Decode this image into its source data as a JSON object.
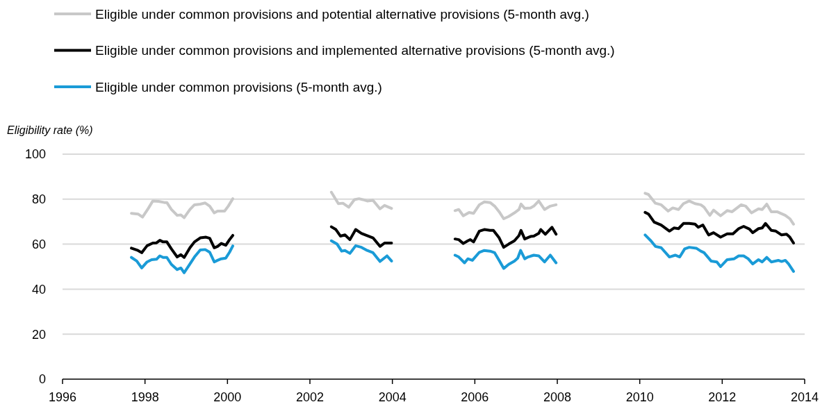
{
  "chart_data": {
    "type": "line",
    "ylabel": "Eligibility rate (%)",
    "xlim": [
      1996,
      2014
    ],
    "xticks": [
      1996,
      1998,
      2000,
      2002,
      2004,
      2006,
      2008,
      2010,
      2012,
      2014
    ],
    "ylim": [
      0,
      100
    ],
    "yticks": [
      0,
      20,
      40,
      60,
      80,
      100
    ],
    "grid": "y",
    "legend": "top",
    "marker": "none",
    "line_style": "solid",
    "series": [
      {
        "name": "Eligible under common provisions and potential alternative provisions (5-month avg.)",
        "color": "#c8c8c8",
        "x": [
          1997.67,
          1997.83,
          1997.94,
          1998.08,
          1998.19,
          1998.33,
          1998.47,
          1998.53,
          1998.64,
          1998.78,
          1998.87,
          1998.95,
          1999.09,
          1999.2,
          1999.34,
          1999.46,
          1999.57,
          1999.68,
          1999.76,
          1999.93,
          2000.02,
          2000.13,
          null,
          2002.52,
          2002.69,
          2002.8,
          2002.94,
          2003.08,
          2003.19,
          2003.28,
          2003.39,
          2003.53,
          2003.7,
          2003.81,
          2003.98,
          null,
          2005.52,
          2005.61,
          2005.72,
          2005.86,
          2005.97,
          2006.11,
          2006.23,
          2006.37,
          2006.48,
          2006.59,
          2006.7,
          2006.82,
          2006.96,
          2007.07,
          2007.12,
          2007.21,
          2007.35,
          2007.43,
          2007.55,
          2007.69,
          2007.83,
          2007.97,
          null,
          2010.13,
          2010.21,
          2010.38,
          2010.52,
          2010.69,
          2010.8,
          2010.94,
          2011.06,
          2011.2,
          2011.34,
          2011.48,
          2011.56,
          2011.7,
          2011.79,
          2011.96,
          2012.12,
          2012.24,
          2012.46,
          2012.57,
          2012.71,
          2012.88,
          2012.97,
          2013.08,
          2013.19,
          2013.33,
          2013.53,
          2013.64,
          2013.73
        ],
        "values": [
          73.7,
          73.4,
          72.0,
          75.9,
          79.2,
          79.0,
          78.5,
          78.5,
          75.4,
          72.8,
          73.0,
          71.8,
          75.4,
          77.5,
          77.8,
          78.3,
          76.9,
          73.9,
          74.7,
          74.7,
          76.9,
          80.2,
          null,
          83.1,
          78.0,
          78.2,
          76.4,
          79.8,
          80.2,
          79.8,
          79.2,
          79.5,
          75.7,
          77.2,
          75.9,
          null,
          74.9,
          75.4,
          72.6,
          74.1,
          73.7,
          77.5,
          78.8,
          78.5,
          76.9,
          74.4,
          71.3,
          72.3,
          73.9,
          75.4,
          77.8,
          75.9,
          76.1,
          76.9,
          79.2,
          75.4,
          76.9,
          77.5,
          null,
          82.6,
          82.1,
          78.2,
          77.5,
          74.7,
          76.1,
          75.4,
          78.0,
          79.2,
          78.0,
          77.5,
          76.4,
          72.8,
          75.1,
          72.6,
          74.9,
          74.4,
          77.5,
          76.9,
          73.9,
          75.7,
          75.4,
          77.8,
          74.4,
          74.4,
          72.8,
          71.3,
          68.9
        ]
      },
      {
        "name": "Eligible under common provisions and implemented alternative provisions (5-month avg.)",
        "color": "#000000",
        "x": [
          1997.67,
          1997.83,
          1997.92,
          1998.05,
          1998.19,
          1998.28,
          1998.36,
          1998.44,
          1998.53,
          1998.64,
          1998.78,
          1998.87,
          1998.95,
          1999.09,
          1999.2,
          1999.34,
          1999.48,
          1999.57,
          1999.68,
          1999.76,
          1999.85,
          1999.96,
          2000.05,
          2000.13,
          null,
          2002.52,
          2002.63,
          2002.74,
          2002.85,
          2002.97,
          2003.11,
          2003.25,
          2003.39,
          2003.53,
          2003.7,
          2003.81,
          2003.98,
          null,
          2005.52,
          2005.61,
          2005.72,
          2005.83,
          2005.89,
          2005.97,
          2006.11,
          2006.23,
          2006.37,
          2006.45,
          2006.59,
          2006.7,
          2006.82,
          2006.96,
          2007.07,
          2007.12,
          2007.21,
          2007.35,
          2007.43,
          2007.55,
          2007.6,
          2007.71,
          2007.87,
          2007.97,
          null,
          2010.13,
          2010.21,
          2010.35,
          2010.52,
          2010.72,
          2010.83,
          2010.94,
          2011.06,
          2011.2,
          2011.34,
          2011.42,
          2011.53,
          2011.67,
          2011.79,
          2011.96,
          2012.12,
          2012.26,
          2012.4,
          2012.52,
          2012.66,
          2012.74,
          2012.88,
          2012.97,
          2013.05,
          2013.19,
          2013.3,
          2013.44,
          2013.56,
          2013.64,
          2013.73
        ],
        "values": [
          58.2,
          57.2,
          56.2,
          59.3,
          60.5,
          60.6,
          61.7,
          61.0,
          61.0,
          57.9,
          54.3,
          55.3,
          54.1,
          58.4,
          61.0,
          62.8,
          63.1,
          62.6,
          58.4,
          59.0,
          60.3,
          59.5,
          62.0,
          63.9,
          null,
          67.7,
          66.5,
          63.6,
          64.1,
          62.0,
          66.5,
          64.8,
          63.8,
          62.8,
          59.0,
          60.5,
          60.5,
          null,
          62.3,
          62.0,
          60.3,
          61.5,
          62.0,
          61.0,
          65.8,
          66.5,
          66.1,
          66.1,
          62.8,
          58.6,
          60.0,
          61.5,
          63.8,
          66.1,
          62.3,
          63.4,
          63.6,
          64.8,
          66.5,
          64.4,
          67.5,
          64.4,
          null,
          74.1,
          73.4,
          69.8,
          68.5,
          65.8,
          67.2,
          66.9,
          69.2,
          69.2,
          68.9,
          67.5,
          68.5,
          64.1,
          65.1,
          63.1,
          64.6,
          64.6,
          66.9,
          67.9,
          66.7,
          65.1,
          66.9,
          67.2,
          69.2,
          66.1,
          65.8,
          64.1,
          64.4,
          63.1,
          60.5
        ]
      },
      {
        "name": "Eligible under common provisions (5-month avg.)",
        "color": "#1a9bd7",
        "x": [
          1997.67,
          1997.8,
          1997.92,
          1998.05,
          1998.16,
          1998.28,
          1998.36,
          1998.44,
          1998.53,
          1998.64,
          1998.78,
          1998.87,
          1998.95,
          1999.09,
          1999.2,
          1999.34,
          1999.46,
          1999.57,
          1999.68,
          1999.76,
          1999.85,
          1999.96,
          2000.05,
          2000.13,
          null,
          2002.52,
          2002.66,
          2002.77,
          2002.85,
          2002.97,
          2003.11,
          2003.25,
          2003.39,
          2003.53,
          2003.7,
          2003.87,
          2003.98,
          null,
          2005.52,
          2005.61,
          2005.75,
          2005.83,
          2005.94,
          2006.11,
          2006.23,
          2006.37,
          2006.48,
          2006.59,
          2006.7,
          2006.82,
          2006.96,
          2007.04,
          2007.11,
          2007.21,
          2007.29,
          2007.43,
          2007.55,
          2007.69,
          2007.83,
          2007.97,
          null,
          2010.13,
          2010.27,
          2010.38,
          2010.52,
          2010.72,
          2010.86,
          2010.97,
          2011.09,
          2011.2,
          2011.37,
          2011.48,
          2011.56,
          2011.73,
          2011.87,
          2011.96,
          2012.12,
          2012.29,
          2012.4,
          2012.52,
          2012.63,
          2012.74,
          2012.88,
          2012.97,
          2013.08,
          2013.19,
          2013.36,
          2013.44,
          2013.53,
          2013.61,
          2013.73
        ],
        "values": [
          54.1,
          52.5,
          49.4,
          52.1,
          53.1,
          53.3,
          54.8,
          54.1,
          54.1,
          51.0,
          48.7,
          49.4,
          47.3,
          51.2,
          54.3,
          57.4,
          57.6,
          56.4,
          52.1,
          52.8,
          53.5,
          53.8,
          56.4,
          59.2,
          null,
          61.5,
          60.0,
          56.9,
          57.2,
          55.9,
          59.3,
          58.6,
          57.2,
          56.2,
          52.3,
          54.8,
          52.5,
          null,
          55.1,
          54.3,
          51.7,
          53.5,
          52.8,
          56.4,
          57.2,
          56.9,
          56.2,
          52.8,
          49.2,
          51.0,
          52.5,
          53.8,
          57.2,
          53.5,
          54.3,
          55.1,
          54.8,
          52.1,
          55.1,
          51.7,
          null,
          64.1,
          61.5,
          59.0,
          58.4,
          54.3,
          55.1,
          54.3,
          57.9,
          58.6,
          58.2,
          56.9,
          56.2,
          52.5,
          52.1,
          50.0,
          53.1,
          53.5,
          54.8,
          54.8,
          53.5,
          51.2,
          53.1,
          52.1,
          54.1,
          52.1,
          52.8,
          52.3,
          52.8,
          51.2,
          47.9
        ]
      }
    ]
  }
}
